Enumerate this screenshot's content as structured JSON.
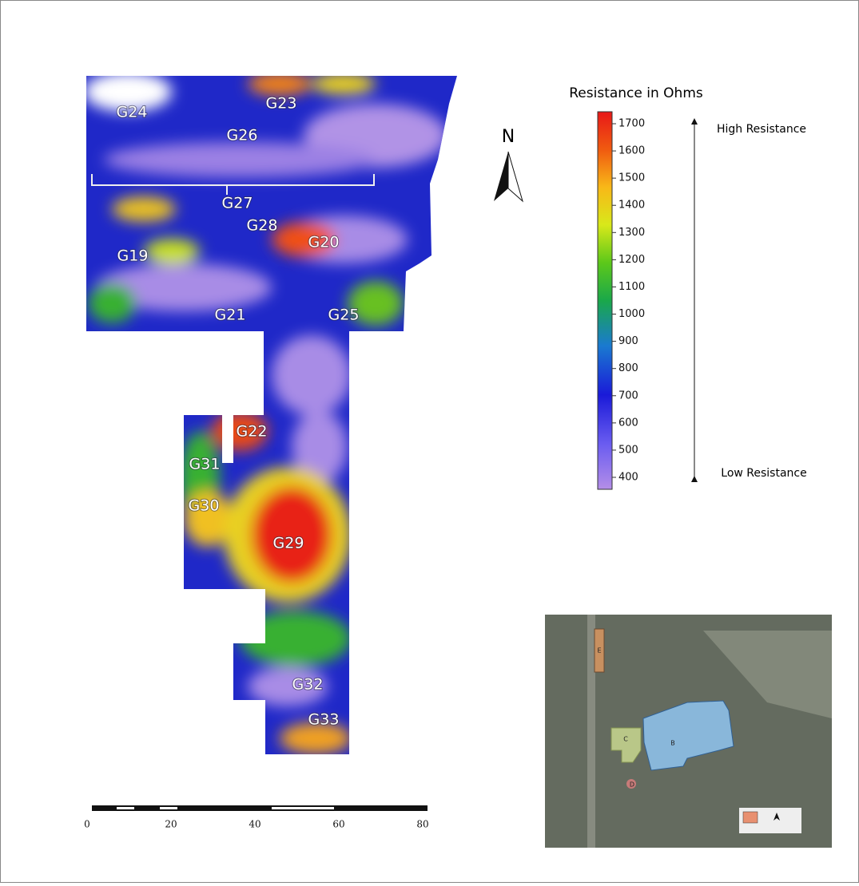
{
  "legend": {
    "title": "Resistance in Ohms",
    "ticks": [
      400,
      500,
      600,
      700,
      800,
      900,
      1000,
      1100,
      1200,
      1300,
      1400,
      1500,
      1600,
      1700
    ],
    "high_label": "High Resistance",
    "low_label": "Low Resistance"
  },
  "north": "N",
  "map_labels": [
    "G24",
    "G23",
    "G26",
    "G27",
    "G28",
    "G20",
    "G19",
    "G21",
    "G25",
    "G22",
    "G31",
    "G30",
    "G29",
    "G32",
    "G33"
  ],
  "scale_bar": {
    "ticks": [
      0,
      20,
      40,
      60,
      80
    ]
  },
  "inset": {
    "labels": [
      "E",
      "C",
      "B",
      "D"
    ]
  }
}
